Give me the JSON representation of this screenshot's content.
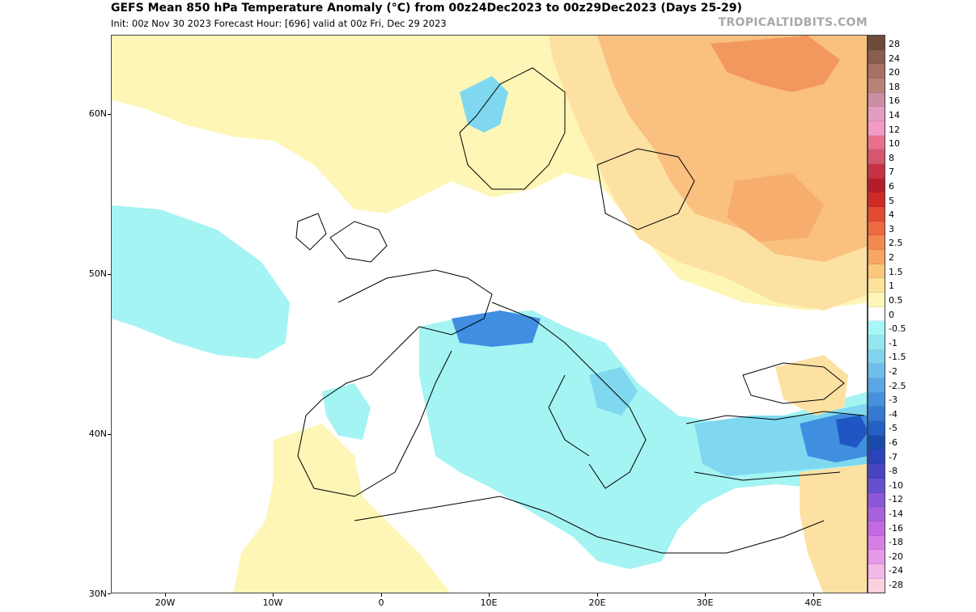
{
  "header": {
    "title": "GEFS Mean 850 hPa Temperature Anomaly (°C) from 00z24Dec2023 to 00z29Dec2023 (Days 25-29)",
    "subtitle": "Init: 00z Nov 30 2023   Forecast Hour: [696]   valid at 00z Fri, Dec 29 2023",
    "brand": "TROPICALTIDBITS.COM"
  },
  "map": {
    "lat_labels": [
      "60N",
      "50N",
      "40N",
      "30N"
    ],
    "lon_labels": [
      "20W",
      "10W",
      "0",
      "10E",
      "20E",
      "30E",
      "40E"
    ],
    "colors": {
      "ocean": "#ffffff",
      "neutral_land": "#ffffff",
      "warm_light": "#fdf6b6",
      "warm_mid": "#fde1a3",
      "warm_orange": "#f9c07f",
      "warm_deep": "#f2975d",
      "cool_light": "#a4f4f3",
      "cool_mid": "#7fd8ef",
      "cool_blue": "#3f8ee0",
      "cool_deep": "#2056c4"
    }
  },
  "colorbar": {
    "labels": [
      "28",
      "24",
      "20",
      "18",
      "16",
      "14",
      "12",
      "10",
      "8",
      "7",
      "6",
      "5",
      "4",
      "3",
      "2.5",
      "2",
      "1.5",
      "1",
      "0.5",
      "0",
      "-0.5",
      "-1",
      "-1.5",
      "-2",
      "-2.5",
      "-3",
      "-4",
      "-5",
      "-6",
      "-7",
      "-8",
      "-10",
      "-12",
      "-14",
      "-16",
      "-18",
      "-20",
      "-24",
      "-28"
    ],
    "colors": [
      "#6e4a3b",
      "#8a5d4e",
      "#a77062",
      "#b98279",
      "#cc8fa1",
      "#e39dc4",
      "#f29ac5",
      "#e8708d",
      "#d4576d",
      "#c73344",
      "#b51d2c",
      "#cf2a26",
      "#e24a32",
      "#ee6940",
      "#f3894e",
      "#f7a664",
      "#fac87c",
      "#fde39a",
      "#fdf6b8",
      "#ffffff",
      "#a6f7f5",
      "#94e7f0",
      "#82d3ee",
      "#6fbdeb",
      "#5aa6e6",
      "#4790e0",
      "#3579d3",
      "#2461c4",
      "#1b4aad",
      "#2b43b8",
      "#4845c2",
      "#6650cf",
      "#8a58d9",
      "#a861dd",
      "#c46ae2",
      "#d87fe6",
      "#e699e8",
      "#f1b8e8",
      "#fbd1e0"
    ]
  }
}
